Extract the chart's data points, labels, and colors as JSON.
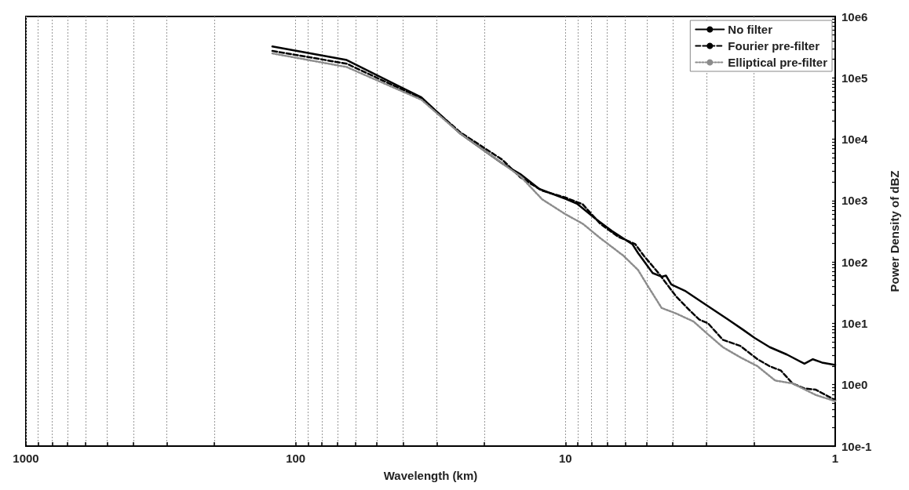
{
  "chart_data": {
    "type": "line",
    "xlabel": "Wavelength (km)",
    "ylabel": "Power Density of dBZ",
    "log": "xy",
    "grid": "x",
    "legend": "top right",
    "marker": "none",
    "xlim": [
      1000,
      1
    ],
    "ylim": [
      1,
      10000000
    ],
    "xticks": [
      1000,
      {
        "value": 900,
        "label": null
      },
      {
        "value": 800,
        "label": null
      },
      {
        "value": 700,
        "label": null
      },
      {
        "value": 600,
        "label": null
      },
      {
        "value": 500,
        "label": null
      },
      {
        "value": 400,
        "label": null
      },
      {
        "value": 300,
        "label": null
      },
      {
        "value": 200,
        "label": null
      },
      100,
      {
        "value": 90,
        "label": null
      },
      {
        "value": 80,
        "label": null
      },
      {
        "value": 70,
        "label": null
      },
      {
        "value": 60,
        "label": null
      },
      {
        "value": 50,
        "label": null
      },
      {
        "value": 40,
        "label": null
      },
      {
        "value": 30,
        "label": null
      },
      {
        "value": 20,
        "label": null
      },
      10,
      {
        "value": 9,
        "label": null
      },
      {
        "value": 8,
        "label": null
      },
      {
        "value": 7,
        "label": null
      },
      {
        "value": 6,
        "label": null
      },
      {
        "value": 5,
        "label": null
      },
      {
        "value": 4,
        "label": null
      },
      {
        "value": 3,
        "label": null
      },
      {
        "value": 2,
        "label": null
      },
      1
    ],
    "yticks": [
      {
        "value": 1,
        "label": "10e-1"
      },
      {
        "value": 2,
        "label": null
      },
      {
        "value": 3,
        "label": null
      },
      {
        "value": 4,
        "label": null
      },
      {
        "value": 5,
        "label": null
      },
      {
        "value": 6,
        "label": null
      },
      {
        "value": 7,
        "label": null
      },
      {
        "value": 8,
        "label": null
      },
      {
        "value": 9,
        "label": null
      },
      {
        "value": 10,
        "label": "10e0"
      },
      {
        "value": 20,
        "label": null
      },
      {
        "value": 30,
        "label": null
      },
      {
        "value": 40,
        "label": null
      },
      {
        "value": 50,
        "label": null
      },
      {
        "value": 60,
        "label": null
      },
      {
        "value": 70,
        "label": null
      },
      {
        "value": 80,
        "label": null
      },
      {
        "value": 90,
        "label": null
      },
      {
        "value": 100,
        "label": "10e1"
      },
      {
        "value": 200,
        "label": null
      },
      {
        "value": 300,
        "label": null
      },
      {
        "value": 400,
        "label": null
      },
      {
        "value": 500,
        "label": null
      },
      {
        "value": 600,
        "label": null
      },
      {
        "value": 700,
        "label": null
      },
      {
        "value": 800,
        "label": null
      },
      {
        "value": 900,
        "label": null
      },
      {
        "value": 1000,
        "label": "10e2"
      },
      {
        "value": 2000,
        "label": null
      },
      {
        "value": 3000,
        "label": null
      },
      {
        "value": 4000,
        "label": null
      },
      {
        "value": 5000,
        "label": null
      },
      {
        "value": 6000,
        "label": null
      },
      {
        "value": 7000,
        "label": null
      },
      {
        "value": 8000,
        "label": null
      },
      {
        "value": 9000,
        "label": null
      },
      {
        "value": 10000,
        "label": "10e3"
      },
      {
        "value": 20000,
        "label": null
      },
      {
        "value": 30000,
        "label": null
      },
      {
        "value": 40000,
        "label": null
      },
      {
        "value": 50000,
        "label": null
      },
      {
        "value": 60000,
        "label": null
      },
      {
        "value": 70000,
        "label": null
      },
      {
        "value": 80000,
        "label": null
      },
      {
        "value": 90000,
        "label": null
      },
      {
        "value": 100000,
        "label": "10e4"
      },
      {
        "value": 200000,
        "label": null
      },
      {
        "value": 300000,
        "label": null
      },
      {
        "value": 400000,
        "label": null
      },
      {
        "value": 500000,
        "label": null
      },
      {
        "value": 600000,
        "label": null
      },
      {
        "value": 700000,
        "label": null
      },
      {
        "value": 800000,
        "label": null
      },
      {
        "value": 900000,
        "label": null
      },
      {
        "value": 1000000,
        "label": "10e5"
      },
      {
        "value": 2000000,
        "label": null
      },
      {
        "value": 3000000,
        "label": null
      },
      {
        "value": 4000000,
        "label": null
      },
      {
        "value": 5000000,
        "label": null
      },
      {
        "value": 6000000,
        "label": null
      },
      {
        "value": 7000000,
        "label": null
      },
      {
        "value": 8000000,
        "label": null
      },
      {
        "value": 9000000,
        "label": null
      },
      {
        "value": 10000000,
        "label": "10e6"
      }
    ],
    "series": [
      {
        "name": "No filter",
        "color": "#000000",
        "line_style": "solid",
        "x": [
          122,
          64.7,
          34.2,
          24.5,
          17.1,
          14.7,
          12.5,
          10,
          9.06,
          7.8,
          6.73,
          5.65,
          5.38,
          4.75,
          4.4,
          4.24,
          4.05,
          3.61,
          3.03,
          2.49,
          2.19,
          1.99,
          1.75,
          1.51,
          1.3,
          1.21,
          1.12,
          1
        ],
        "values": [
          3240000,
          1950000,
          480000,
          123000,
          40000,
          27000,
          15500,
          10700,
          8900,
          5200,
          3200,
          1950,
          1400,
          660,
          575,
          600,
          430,
          340,
          204,
          115,
          78,
          58,
          41,
          31,
          22,
          26,
          23,
          21
        ]
      },
      {
        "name": "Fourier pre-filter",
        "color": "#000000",
        "line_style": "dashed",
        "x": [
          122,
          64.7,
          34.2,
          24.5,
          17.1,
          14.7,
          12.2,
          10,
          8.63,
          7.43,
          6.4,
          5.51,
          5.12,
          4.52,
          3.89,
          3.44,
          3.19,
          2.96,
          2.61,
          2.25,
          1.94,
          1.75,
          1.59,
          1.44,
          1.3,
          1.18,
          1
        ],
        "values": [
          2750000,
          1700000,
          460000,
          129000,
          46000,
          24000,
          14500,
          11200,
          8700,
          4200,
          2600,
          1950,
          1260,
          660,
          275,
          158,
          115,
          100,
          54,
          43,
          26,
          20,
          17,
          10.5,
          8.7,
          8.3,
          5.6
        ]
      },
      {
        "name": "Elliptical pre-filter",
        "color": "#8c8c8c",
        "line_style": "dotted",
        "x": [
          122,
          64.7,
          34.2,
          24.5,
          17.1,
          14.7,
          12.2,
          10,
          8.63,
          7.43,
          6.09,
          5.38,
          4.99,
          4.4,
          3.89,
          3.35,
          2.96,
          2.61,
          2.25,
          1.94,
          1.67,
          1.44,
          1.18,
          1
        ],
        "values": [
          2500000,
          1500000,
          440000,
          123000,
          40000,
          25000,
          10500,
          6000,
          4200,
          2450,
          1260,
          740,
          430,
          178,
          145,
          107,
          66,
          41,
          28,
          20,
          11.7,
          10.5,
          6.8,
          5.4
        ]
      }
    ]
  }
}
